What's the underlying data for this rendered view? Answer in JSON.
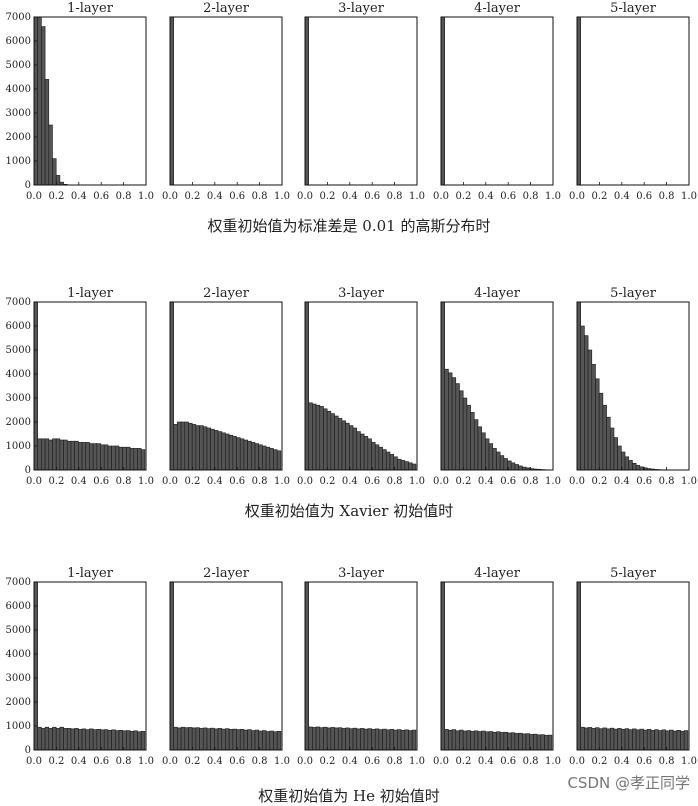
{
  "figure_sections": [
    {
      "caption": "权重初始值为标准差是 0.01 的高斯分布时"
    },
    {
      "caption": "权重初始值为 Xavier 初始值时"
    },
    {
      "caption": "权重初始值为 He 初始值时"
    }
  ],
  "watermark": "CSDN @孝正同学",
  "colors": {
    "bar_fill": "#555555",
    "bar_edge": "#1a1a1a",
    "axes": "#111111",
    "text": "#222222"
  },
  "chart_data": [
    {
      "type": "bar",
      "title": "1-layer",
      "section": 0,
      "xlim": [
        0,
        1
      ],
      "ylim": [
        0,
        7000
      ],
      "xticks": [
        "0.0",
        "0.2",
        "0.4",
        "0.6",
        "0.8",
        "1.0"
      ],
      "yticks": [
        "0",
        "1000",
        "2000",
        "3000",
        "4000",
        "5000",
        "6000",
        "7000"
      ],
      "bin_width": 0.033,
      "values": [
        7000,
        7000,
        6600,
        4400,
        2500,
        1100,
        400,
        120,
        30,
        5,
        0,
        0,
        0,
        0,
        0,
        0,
        0,
        0,
        0,
        0,
        0,
        0,
        0,
        0,
        0,
        0,
        0,
        0,
        0,
        0
      ]
    },
    {
      "type": "bar",
      "title": "2-layer",
      "section": 0,
      "xlim": [
        0,
        1
      ],
      "ylim": [
        0,
        7000
      ],
      "xticks": [
        "0.0",
        "0.2",
        "0.4",
        "0.6",
        "0.8",
        "1.0"
      ],
      "yticks": [],
      "bin_width": 0.033,
      "values": [
        7000
      ]
    },
    {
      "type": "bar",
      "title": "3-layer",
      "section": 0,
      "xlim": [
        0,
        1
      ],
      "ylim": [
        0,
        7000
      ],
      "xticks": [
        "0.0",
        "0.2",
        "0.4",
        "0.6",
        "0.8",
        "1.0"
      ],
      "yticks": [],
      "bin_width": 0.033,
      "values": [
        7000
      ]
    },
    {
      "type": "bar",
      "title": "4-layer",
      "section": 0,
      "xlim": [
        0,
        1
      ],
      "ylim": [
        0,
        7000
      ],
      "xticks": [
        "0.0",
        "0.2",
        "0.4",
        "0.6",
        "0.8",
        "1.0"
      ],
      "yticks": [],
      "bin_width": 0.033,
      "values": [
        7000
      ]
    },
    {
      "type": "bar",
      "title": "5-layer",
      "section": 0,
      "xlim": [
        0,
        1
      ],
      "ylim": [
        0,
        7000
      ],
      "xticks": [
        "0.0",
        "0.2",
        "0.4",
        "0.6",
        "0.8",
        "1.0"
      ],
      "yticks": [],
      "bin_width": 0.033,
      "values": [
        7000
      ]
    },
    {
      "type": "bar",
      "title": "1-layer",
      "section": 1,
      "xlim": [
        0,
        1
      ],
      "ylim": [
        0,
        7000
      ],
      "xticks": [
        "0.0",
        "0.2",
        "0.4",
        "0.6",
        "0.8",
        "1.0"
      ],
      "yticks": [
        "0",
        "1000",
        "2000",
        "3000",
        "4000",
        "5000",
        "6000",
        "7000"
      ],
      "bin_width": 0.033,
      "values": [
        7000,
        1300,
        1300,
        1300,
        1250,
        1300,
        1300,
        1250,
        1250,
        1200,
        1200,
        1200,
        1150,
        1150,
        1150,
        1100,
        1100,
        1100,
        1050,
        1050,
        1000,
        1000,
        1000,
        950,
        950,
        950,
        900,
        900,
        900,
        850
      ]
    },
    {
      "type": "bar",
      "title": "2-layer",
      "section": 1,
      "xlim": [
        0,
        1
      ],
      "ylim": [
        0,
        7000
      ],
      "xticks": [
        "0.0",
        "0.2",
        "0.4",
        "0.6",
        "0.8",
        "1.0"
      ],
      "yticks": [],
      "bin_width": 0.033,
      "values": [
        7000,
        1900,
        2000,
        2000,
        2000,
        1950,
        1900,
        1850,
        1850,
        1800,
        1750,
        1700,
        1650,
        1600,
        1550,
        1500,
        1450,
        1400,
        1350,
        1300,
        1250,
        1200,
        1150,
        1100,
        1050,
        1000,
        950,
        900,
        850,
        800
      ]
    },
    {
      "type": "bar",
      "title": "3-layer",
      "section": 1,
      "xlim": [
        0,
        1
      ],
      "ylim": [
        0,
        7000
      ],
      "xticks": [
        "0.0",
        "0.2",
        "0.4",
        "0.6",
        "0.8",
        "1.0"
      ],
      "yticks": [],
      "bin_width": 0.033,
      "values": [
        7000,
        2800,
        2750,
        2700,
        2650,
        2550,
        2450,
        2350,
        2250,
        2150,
        2050,
        1950,
        1850,
        1750,
        1600,
        1500,
        1400,
        1300,
        1150,
        1050,
        950,
        850,
        750,
        650,
        550,
        450,
        400,
        350,
        300,
        250
      ]
    },
    {
      "type": "bar",
      "title": "4-layer",
      "section": 1,
      "xlim": [
        0,
        1
      ],
      "ylim": [
        0,
        7000
      ],
      "xticks": [
        "0.0",
        "0.2",
        "0.4",
        "0.6",
        "0.8",
        "1.0"
      ],
      "yticks": [],
      "bin_width": 0.033,
      "values": [
        7000,
        4200,
        4050,
        3850,
        3600,
        3300,
        3000,
        2700,
        2400,
        2100,
        1800,
        1550,
        1300,
        1100,
        900,
        750,
        600,
        480,
        380,
        300,
        230,
        170,
        120,
        90,
        60,
        40,
        30,
        20,
        10,
        5
      ]
    },
    {
      "type": "bar",
      "title": "5-layer",
      "section": 1,
      "xlim": [
        0,
        1
      ],
      "ylim": [
        0,
        7000
      ],
      "xticks": [
        "0.0",
        "0.2",
        "0.4",
        "0.6",
        "0.8",
        "1.0"
      ],
      "yticks": [],
      "bin_width": 0.033,
      "values": [
        7000,
        6000,
        5600,
        5000,
        4400,
        3800,
        3200,
        2700,
        2200,
        1750,
        1350,
        1000,
        750,
        550,
        400,
        280,
        190,
        130,
        90,
        60,
        40,
        25,
        15,
        10,
        5,
        3,
        2,
        1,
        0,
        0
      ]
    },
    {
      "type": "bar",
      "title": "1-layer",
      "section": 2,
      "xlim": [
        0,
        1
      ],
      "ylim": [
        0,
        7000
      ],
      "xticks": [
        "0.0",
        "0.2",
        "0.4",
        "0.6",
        "0.8",
        "1.0"
      ],
      "yticks": [
        "0",
        "1000",
        "2000",
        "3000",
        "4000",
        "5000",
        "6000",
        "7000"
      ],
      "bin_width": 0.033,
      "values": [
        7000,
        950,
        900,
        950,
        900,
        950,
        900,
        950,
        900,
        900,
        880,
        900,
        860,
        880,
        850,
        880,
        850,
        860,
        840,
        850,
        820,
        840,
        810,
        820,
        800,
        810,
        780,
        800,
        760,
        780
      ]
    },
    {
      "type": "bar",
      "title": "2-layer",
      "section": 2,
      "xlim": [
        0,
        1
      ],
      "ylim": [
        0,
        7000
      ],
      "xticks": [
        "0.0",
        "0.2",
        "0.4",
        "0.6",
        "0.8",
        "1.0"
      ],
      "yticks": [],
      "bin_width": 0.033,
      "values": [
        7000,
        950,
        920,
        950,
        930,
        940,
        920,
        930,
        900,
        920,
        890,
        910,
        880,
        900,
        870,
        890,
        860,
        870,
        850,
        860,
        830,
        850,
        810,
        830,
        790,
        810,
        770,
        790,
        760,
        780
      ]
    },
    {
      "type": "bar",
      "title": "3-layer",
      "section": 2,
      "xlim": [
        0,
        1
      ],
      "ylim": [
        0,
        7000
      ],
      "xticks": [
        "0.0",
        "0.2",
        "0.4",
        "0.6",
        "0.8",
        "1.0"
      ],
      "yticks": [],
      "bin_width": 0.033,
      "values": [
        7000,
        960,
        940,
        960,
        930,
        950,
        920,
        940,
        920,
        930,
        900,
        920,
        890,
        910,
        880,
        900,
        870,
        890,
        860,
        880,
        850,
        870,
        840,
        860,
        830,
        850,
        820,
        840,
        810,
        830
      ]
    },
    {
      "type": "bar",
      "title": "4-layer",
      "section": 2,
      "xlim": [
        0,
        1
      ],
      "ylim": [
        0,
        7000
      ],
      "xticks": [
        "0.0",
        "0.2",
        "0.4",
        "0.6",
        "0.8",
        "1.0"
      ],
      "yticks": [],
      "bin_width": 0.033,
      "values": [
        7000,
        860,
        820,
        850,
        800,
        830,
        790,
        810,
        780,
        800,
        770,
        790,
        760,
        770,
        740,
        760,
        730,
        740,
        710,
        720,
        690,
        700,
        670,
        680,
        650,
        660,
        630,
        640,
        610,
        620
      ]
    },
    {
      "type": "bar",
      "title": "5-layer",
      "section": 2,
      "xlim": [
        0,
        1
      ],
      "ylim": [
        0,
        7000
      ],
      "xticks": [
        "0.0",
        "0.2",
        "0.4",
        "0.6",
        "0.8",
        "1.0"
      ],
      "yticks": [],
      "bin_width": 0.033,
      "values": [
        7000,
        950,
        920,
        940,
        900,
        930,
        890,
        920,
        880,
        910,
        870,
        900,
        860,
        890,
        850,
        880,
        840,
        870,
        830,
        860,
        820,
        850,
        810,
        840,
        800,
        830,
        790,
        820,
        780,
        810
      ]
    }
  ]
}
